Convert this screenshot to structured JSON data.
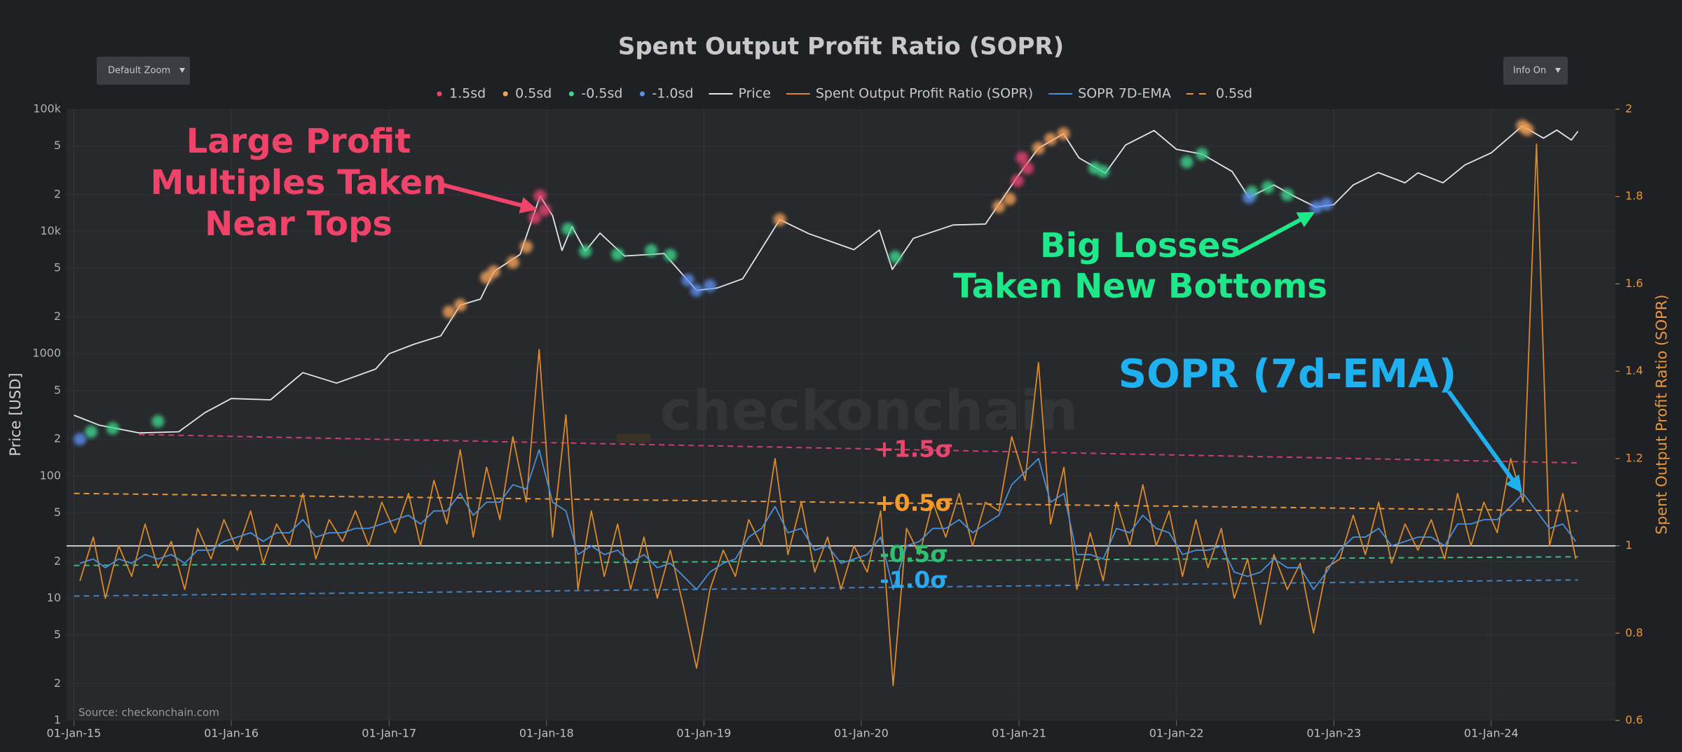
{
  "chart_data": {
    "type": "line",
    "title": "Spent Output Profit Ratio (SOPR)",
    "controls": [
      "Default Zoom",
      "Info On"
    ],
    "y_label": "Price [USD]",
    "y2_label": "Spent Output Profit Ratio (SOPR)",
    "source": "Source: checkonchain.com",
    "watermark": "checkonchain",
    "log_y": true,
    "grid": true,
    "legend": "top",
    "xlim": [
      "2014-12-15",
      "2024-10-15"
    ],
    "xticks": [
      {
        "value": "2015-01-01",
        "label": "01-Jan-15"
      },
      {
        "value": "2016-01-01",
        "label": "01-Jan-16"
      },
      {
        "value": "2017-01-01",
        "label": "01-Jan-17"
      },
      {
        "value": "2018-01-01",
        "label": "01-Jan-18"
      },
      {
        "value": "2019-01-01",
        "label": "01-Jan-19"
      },
      {
        "value": "2020-01-01",
        "label": "01-Jan-20"
      },
      {
        "value": "2021-01-01",
        "label": "01-Jan-21"
      },
      {
        "value": "2022-01-01",
        "label": "01-Jan-22"
      },
      {
        "value": "2023-01-01",
        "label": "01-Jan-23"
      },
      {
        "value": "2024-01-01",
        "label": "01-Jan-24"
      }
    ],
    "ylim": [
      1,
      100000
    ],
    "yticks": [
      1,
      2,
      5,
      10,
      {
        "value": 20,
        "label": "2"
      },
      {
        "value": 50,
        "label": "5"
      },
      100,
      {
        "value": 200,
        "label": "2"
      },
      {
        "value": 500,
        "label": "5"
      },
      1000,
      {
        "value": 2000,
        "label": "2"
      },
      {
        "value": 5000,
        "label": "5"
      },
      {
        "value": 10000,
        "label": "10k"
      },
      {
        "value": 20000,
        "label": "2"
      },
      {
        "value": 50000,
        "label": "5"
      },
      {
        "value": 100000,
        "label": "100k"
      }
    ],
    "y2lim": [
      0.6,
      2
    ],
    "y2ticks": [
      0.6,
      0.8,
      1,
      1.2,
      1.4,
      1.6,
      1.8,
      2
    ],
    "series": [
      {
        "name": "1.5sd",
        "color": "#e8456f",
        "style": "markers",
        "x": [
          "2017-12-05",
          "2017-12-17",
          "2017-12-28",
          "2020-12-28",
          "2021-01-08",
          "2021-01-20"
        ],
        "values": [
          13000,
          19500,
          15000,
          26000,
          40000,
          33000
        ]
      },
      {
        "name": "0.5sd",
        "color": "#f5a35a",
        "style": "markers",
        "x": [
          "2017-05-20",
          "2017-06-15",
          "2017-08-15",
          "2017-09-01",
          "2017-10-15",
          "2017-11-15",
          "2019-06-26",
          "2020-11-15",
          "2020-12-10",
          "2021-02-15",
          "2021-03-15",
          "2021-04-14",
          "2024-03-13",
          "2024-03-25"
        ],
        "values": [
          2200,
          2500,
          4200,
          4700,
          5600,
          7500,
          12500,
          16000,
          18500,
          48000,
          57000,
          63000,
          73000,
          68000
        ]
      },
      {
        "name": "-0.5sd",
        "color": "#3dd68c",
        "style": "markers",
        "x": [
          "2015-02-10",
          "2015-04-01",
          "2015-07-15",
          "2018-02-20",
          "2018-04-01",
          "2018-06-15",
          "2018-09-01",
          "2018-10-15",
          "2020-03-20",
          "2021-06-25",
          "2021-07-15",
          "2022-01-25",
          "2022-03-01",
          "2022-06-25",
          "2022-08-01",
          "2022-09-15"
        ],
        "values": [
          230,
          245,
          280,
          10500,
          6900,
          6500,
          7000,
          6400,
          6200,
          33000,
          31000,
          37000,
          43000,
          21000,
          23000,
          20000
        ]
      },
      {
        "name": "-1.0sd",
        "color": "#5b8ff0",
        "style": "markers",
        "x": [
          "2015-01-15",
          "2018-11-25",
          "2018-12-15",
          "2019-01-15",
          "2022-06-18",
          "2022-11-21",
          "2022-12-15"
        ],
        "values": [
          200,
          4000,
          3300,
          3600,
          19000,
          15800,
          16800
        ]
      },
      {
        "name": "Price",
        "color": "#e6e6e6",
        "style": "line",
        "x": [
          "2015-01-01",
          "2015-03-01",
          "2015-06-01",
          "2015-09-01",
          "2015-11-01",
          "2016-01-01",
          "2016-04-01",
          "2016-06-15",
          "2016-09-01",
          "2016-12-01",
          "2017-01-01",
          "2017-03-01",
          "2017-05-01",
          "2017-06-15",
          "2017-08-01",
          "2017-09-01",
          "2017-11-01",
          "2017-12-17",
          "2018-01-15",
          "2018-02-06",
          "2018-03-01",
          "2018-04-01",
          "2018-05-05",
          "2018-07-01",
          "2018-10-01",
          "2018-12-15",
          "2019-02-01",
          "2019-04-01",
          "2019-06-26",
          "2019-09-01",
          "2019-12-15",
          "2020-02-12",
          "2020-03-13",
          "2020-05-01",
          "2020-08-01",
          "2020-10-15",
          "2020-12-31",
          "2021-02-15",
          "2021-04-14",
          "2021-05-20",
          "2021-07-20",
          "2021-09-05",
          "2021-11-10",
          "2022-01-01",
          "2022-03-01",
          "2022-05-10",
          "2022-06-18",
          "2022-08-15",
          "2022-10-01",
          "2022-11-21",
          "2023-01-01",
          "2023-02-15",
          "2023-04-14",
          "2023-06-15",
          "2023-07-15",
          "2023-09-11",
          "2023-11-01",
          "2024-01-01",
          "2024-03-13",
          "2024-05-01",
          "2024-06-01",
          "2024-07-05",
          "2024-07-20"
        ],
        "values": [
          314,
          260,
          225,
          230,
          330,
          430,
          420,
          700,
          575,
          750,
          1000,
          1200,
          1400,
          2500,
          2800,
          4700,
          6500,
          19500,
          13500,
          7000,
          11000,
          6900,
          9700,
          6300,
          6600,
          3300,
          3450,
          4100,
          12500,
          9600,
          7100,
          10300,
          4900,
          8800,
          11300,
          11500,
          29000,
          48000,
          63000,
          40000,
          30000,
          51000,
          67000,
          47000,
          43000,
          31000,
          19000,
          24000,
          19400,
          15800,
          16600,
          24000,
          30300,
          25000,
          30200,
          25000,
          35000,
          44000,
          73000,
          58000,
          67500,
          56000,
          66000
        ]
      },
      {
        "name": "Spent Output Profit Ratio (SOPR)",
        "color": "#d98a2b",
        "style": "line",
        "axis": "y2",
        "x": [
          "2015-01-15",
          "2015-02-15",
          "2015-03-15",
          "2015-04-15",
          "2015-05-15",
          "2015-06-15",
          "2015-07-15",
          "2015-08-15",
          "2015-09-15",
          "2015-10-15",
          "2015-11-15",
          "2015-12-15",
          "2016-01-15",
          "2016-02-15",
          "2016-03-15",
          "2016-04-15",
          "2016-05-15",
          "2016-06-15",
          "2016-07-15",
          "2016-08-15",
          "2016-09-15",
          "2016-10-15",
          "2016-11-15",
          "2016-12-15",
          "2017-01-15",
          "2017-02-15",
          "2017-03-15",
          "2017-04-15",
          "2017-05-15",
          "2017-06-15",
          "2017-07-15",
          "2017-08-15",
          "2017-09-15",
          "2017-10-15",
          "2017-11-15",
          "2017-12-15",
          "2018-01-15",
          "2018-02-15",
          "2018-03-15",
          "2018-04-15",
          "2018-05-15",
          "2018-06-15",
          "2018-07-15",
          "2018-08-15",
          "2018-09-15",
          "2018-10-15",
          "2018-11-15",
          "2018-12-15",
          "2019-01-15",
          "2019-02-15",
          "2019-03-15",
          "2019-04-15",
          "2019-05-15",
          "2019-06-15",
          "2019-07-15",
          "2019-08-15",
          "2019-09-15",
          "2019-10-15",
          "2019-11-15",
          "2019-12-15",
          "2020-01-15",
          "2020-02-15",
          "2020-03-15",
          "2020-04-15",
          "2020-05-15",
          "2020-06-15",
          "2020-07-15",
          "2020-08-15",
          "2020-09-15",
          "2020-10-15",
          "2020-11-15",
          "2020-12-15",
          "2021-01-15",
          "2021-02-15",
          "2021-03-15",
          "2021-04-15",
          "2021-05-15",
          "2021-06-15",
          "2021-07-15",
          "2021-08-15",
          "2021-09-15",
          "2021-10-15",
          "2021-11-15",
          "2021-12-15",
          "2022-01-15",
          "2022-02-15",
          "2022-03-15",
          "2022-04-15",
          "2022-05-15",
          "2022-06-15",
          "2022-07-15",
          "2022-08-15",
          "2022-09-15",
          "2022-10-15",
          "2022-11-15",
          "2022-12-15",
          "2023-01-15",
          "2023-02-15",
          "2023-03-15",
          "2023-04-15",
          "2023-05-15",
          "2023-06-15",
          "2023-07-15",
          "2023-08-15",
          "2023-09-15",
          "2023-10-15",
          "2023-11-15",
          "2023-12-15",
          "2024-01-15",
          "2024-02-15",
          "2024-03-15",
          "2024-04-15",
          "2024-05-15",
          "2024-06-15",
          "2024-07-15"
        ],
        "values": [
          0.92,
          1.02,
          0.88,
          1.0,
          0.93,
          1.05,
          0.95,
          1.01,
          0.9,
          1.04,
          0.97,
          1.06,
          0.99,
          1.08,
          0.96,
          1.05,
          1.0,
          1.12,
          0.97,
          1.06,
          1.01,
          1.08,
          1.0,
          1.1,
          1.03,
          1.12,
          1.0,
          1.15,
          1.05,
          1.22,
          1.02,
          1.18,
          1.06,
          1.25,
          1.1,
          1.45,
          1.02,
          1.3,
          0.9,
          1.08,
          0.93,
          1.05,
          0.9,
          1.02,
          0.88,
          0.99,
          0.86,
          0.72,
          0.9,
          0.99,
          0.93,
          1.06,
          1.0,
          1.2,
          0.98,
          1.1,
          0.94,
          1.02,
          0.9,
          1.0,
          0.94,
          1.08,
          0.68,
          1.04,
          0.98,
          1.1,
          1.02,
          1.12,
          1.0,
          1.1,
          1.08,
          1.25,
          1.15,
          1.42,
          1.05,
          1.18,
          0.9,
          1.03,
          0.92,
          1.1,
          1.0,
          1.14,
          1.0,
          1.08,
          0.93,
          1.06,
          0.95,
          1.04,
          0.88,
          0.97,
          0.82,
          0.98,
          0.9,
          0.96,
          0.8,
          0.95,
          0.97,
          1.07,
          0.98,
          1.1,
          0.96,
          1.05,
          0.99,
          1.06,
          0.97,
          1.12,
          1.0,
          1.1,
          1.03,
          1.2,
          1.1,
          1.92,
          1.0,
          1.12,
          0.97
        ]
      },
      {
        "name": "SOPR 7D-EMA",
        "color": "#4a90d9",
        "style": "line",
        "axis": "y2",
        "x": [
          "2015-01-15",
          "2015-02-15",
          "2015-03-15",
          "2015-04-15",
          "2015-05-15",
          "2015-06-15",
          "2015-07-15",
          "2015-08-15",
          "2015-09-15",
          "2015-10-15",
          "2015-11-15",
          "2015-12-15",
          "2016-01-15",
          "2016-02-15",
          "2016-03-15",
          "2016-04-15",
          "2016-05-15",
          "2016-06-15",
          "2016-07-15",
          "2016-08-15",
          "2016-09-15",
          "2016-10-15",
          "2016-11-15",
          "2016-12-15",
          "2017-01-15",
          "2017-02-15",
          "2017-03-15",
          "2017-04-15",
          "2017-05-15",
          "2017-06-15",
          "2017-07-15",
          "2017-08-15",
          "2017-09-15",
          "2017-10-15",
          "2017-11-15",
          "2017-12-15",
          "2018-01-15",
          "2018-02-15",
          "2018-03-15",
          "2018-04-15",
          "2018-05-15",
          "2018-06-15",
          "2018-07-15",
          "2018-08-15",
          "2018-09-15",
          "2018-10-15",
          "2018-11-15",
          "2018-12-15",
          "2019-01-15",
          "2019-02-15",
          "2019-03-15",
          "2019-04-15",
          "2019-05-15",
          "2019-06-15",
          "2019-07-15",
          "2019-08-15",
          "2019-09-15",
          "2019-10-15",
          "2019-11-15",
          "2019-12-15",
          "2020-01-15",
          "2020-02-15",
          "2020-03-15",
          "2020-04-15",
          "2020-05-15",
          "2020-06-15",
          "2020-07-15",
          "2020-08-15",
          "2020-09-15",
          "2020-10-15",
          "2020-11-15",
          "2020-12-15",
          "2021-01-15",
          "2021-02-15",
          "2021-03-15",
          "2021-04-15",
          "2021-05-15",
          "2021-06-15",
          "2021-07-15",
          "2021-08-15",
          "2021-09-15",
          "2021-10-15",
          "2021-11-15",
          "2021-12-15",
          "2022-01-15",
          "2022-02-15",
          "2022-03-15",
          "2022-04-15",
          "2022-05-15",
          "2022-06-15",
          "2022-07-15",
          "2022-08-15",
          "2022-09-15",
          "2022-10-15",
          "2022-11-15",
          "2022-12-15",
          "2023-01-15",
          "2023-02-15",
          "2023-03-15",
          "2023-04-15",
          "2023-05-15",
          "2023-06-15",
          "2023-07-15",
          "2023-08-15",
          "2023-09-15",
          "2023-10-15",
          "2023-11-15",
          "2023-12-15",
          "2024-01-15",
          "2024-02-15",
          "2024-03-15",
          "2024-04-15",
          "2024-05-15",
          "2024-06-15",
          "2024-07-15"
        ],
        "values": [
          0.96,
          0.97,
          0.95,
          0.97,
          0.96,
          0.98,
          0.97,
          0.98,
          0.96,
          0.99,
          0.99,
          1.01,
          1.02,
          1.03,
          1.01,
          1.03,
          1.03,
          1.06,
          1.02,
          1.03,
          1.03,
          1.04,
          1.04,
          1.05,
          1.06,
          1.07,
          1.05,
          1.08,
          1.08,
          1.12,
          1.07,
          1.1,
          1.1,
          1.14,
          1.13,
          1.22,
          1.1,
          1.08,
          0.98,
          1.0,
          0.98,
          0.99,
          0.96,
          0.98,
          0.95,
          0.96,
          0.93,
          0.9,
          0.94,
          0.96,
          0.97,
          1.02,
          1.04,
          1.09,
          1.03,
          1.04,
          0.99,
          1.0,
          0.96,
          0.97,
          0.98,
          1.02,
          0.9,
          1.0,
          1.01,
          1.04,
          1.04,
          1.06,
          1.03,
          1.05,
          1.07,
          1.14,
          1.17,
          1.2,
          1.1,
          1.12,
          0.98,
          0.98,
          0.97,
          1.04,
          1.03,
          1.07,
          1.04,
          1.03,
          0.98,
          0.99,
          0.99,
          1.0,
          0.94,
          0.93,
          0.94,
          0.97,
          0.95,
          0.95,
          0.9,
          0.94,
          0.99,
          1.02,
          1.02,
          1.04,
          1.0,
          1.01,
          1.02,
          1.02,
          1.0,
          1.05,
          1.05,
          1.06,
          1.06,
          1.09,
          1.12,
          1.08,
          1.04,
          1.05,
          1.01
        ]
      },
      {
        "name": "0.5sd",
        "color": "#e8963c",
        "style": "dashed",
        "axis": "y2",
        "x": [
          "2015-01-01",
          "2024-07-20"
        ],
        "values": [
          1.12,
          1.08
        ]
      }
    ],
    "reference_lines": [
      {
        "color": "#e8456f",
        "x": [
          "2015-06-01",
          "2024-07-20"
        ],
        "values": [
          1.255,
          1.19
        ]
      },
      {
        "color": "#3dd68c",
        "x": [
          "2015-01-01",
          "2024-07-20"
        ],
        "values": [
          0.955,
          0.975
        ]
      },
      {
        "color": "#4a90d9",
        "x": [
          "2015-01-01",
          "2024-07-20"
        ],
        "values": [
          0.885,
          0.922
        ]
      }
    ],
    "hlines": [
      {
        "value": 1,
        "color": "#ffffff"
      }
    ],
    "annotations": [
      {
        "lines": [
          "Large Profit",
          "Multiples Taken",
          "Near Tops"
        ],
        "color": "#f0436a"
      },
      {
        "lines": [
          "Big Losses",
          "Taken New Bottoms"
        ],
        "color": "#1ee88a"
      },
      {
        "lines": [
          "SOPR (7d-EMA)"
        ],
        "color": "#1fb0f0"
      },
      {
        "lines": [
          "+1.5σ"
        ],
        "color": "#e8456f"
      },
      {
        "lines": [
          "+0.5σ"
        ],
        "color": "#f59a2a"
      },
      {
        "lines": [
          "-0.5σ"
        ],
        "color": "#2fbf72"
      },
      {
        "lines": [
          "-1.0σ"
        ],
        "color": "#2aa8f0"
      }
    ]
  }
}
